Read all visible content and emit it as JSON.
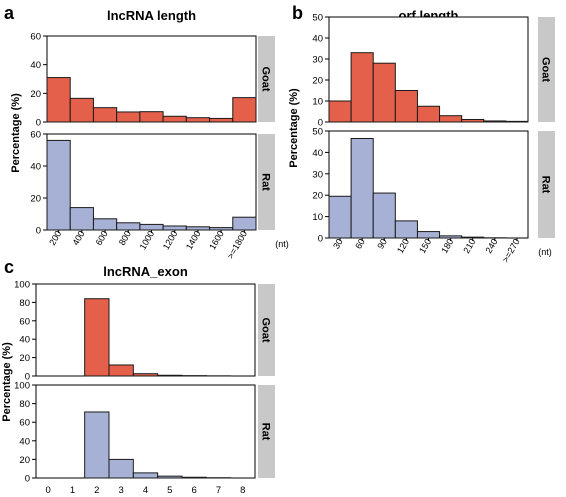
{
  "colors": {
    "goat": "#e4604a",
    "rat": "#a7b1d5",
    "bar_stroke": "#1a1a1a",
    "strip": "#c8c8c8",
    "axis": "#000000"
  },
  "chart_data": [
    {
      "panel": "a",
      "type": "bar",
      "title": "lncRNA length",
      "ylabel": "Percentage (%)",
      "unit": "(nt)",
      "categories": [
        "200",
        "400",
        "600",
        "800",
        "1000",
        "1200",
        "1400",
        "1600",
        ">=1800"
      ],
      "series": [
        {
          "name": "Goat",
          "ylim": [
            0,
            60
          ],
          "yticks": [
            "0",
            "20",
            "40",
            "60"
          ],
          "values": [
            31,
            16.5,
            10,
            7,
            7.2,
            4,
            3,
            2.5,
            17
          ]
        },
        {
          "name": "Rat",
          "ylim": [
            0,
            60
          ],
          "yticks": [
            "0",
            "20",
            "40",
            "60"
          ],
          "values": [
            56,
            14,
            7,
            4.5,
            3.5,
            2.5,
            2,
            1.5,
            8
          ]
        }
      ]
    },
    {
      "panel": "b",
      "type": "bar",
      "title": "orf.length",
      "ylabel": "Percentage (%)",
      "unit": "(nt)",
      "categories": [
        "30",
        "60",
        "90",
        "120",
        "150",
        "180",
        "210",
        "240",
        ">=270"
      ],
      "series": [
        {
          "name": "Goat",
          "ylim": [
            0,
            50
          ],
          "yticks": [
            "0",
            "10",
            "20",
            "30",
            "40",
            "50"
          ],
          "values": [
            10,
            33,
            28,
            15,
            7.5,
            3,
            1.2,
            0.5,
            0.3
          ]
        },
        {
          "name": "Rat",
          "ylim": [
            0,
            50
          ],
          "yticks": [
            "0",
            "10",
            "20",
            "30",
            "40",
            "50"
          ],
          "values": [
            19.5,
            46.5,
            21,
            8,
            3,
            1,
            0.4,
            0.1,
            0
          ]
        }
      ]
    },
    {
      "panel": "c",
      "type": "bar",
      "title": "lncRNA_exon",
      "ylabel": "Percentage (%)",
      "unit": "",
      "categories": [
        "0",
        "1",
        "2",
        "3",
        "4",
        "5",
        "6",
        "7",
        "8"
      ],
      "series": [
        {
          "name": "Goat",
          "ylim": [
            0,
            100
          ],
          "yticks": [
            "0",
            "20",
            "40",
            "60",
            "80",
            "100"
          ],
          "values": [
            0,
            0,
            84,
            12,
            2.5,
            0.8,
            0.4,
            0.2,
            0
          ]
        },
        {
          "name": "Rat",
          "ylim": [
            0,
            100
          ],
          "yticks": [
            "0",
            "20",
            "40",
            "60",
            "80",
            "100"
          ],
          "values": [
            0,
            0,
            71,
            20,
            5.5,
            2,
            0.8,
            0.3,
            0
          ]
        }
      ]
    }
  ]
}
